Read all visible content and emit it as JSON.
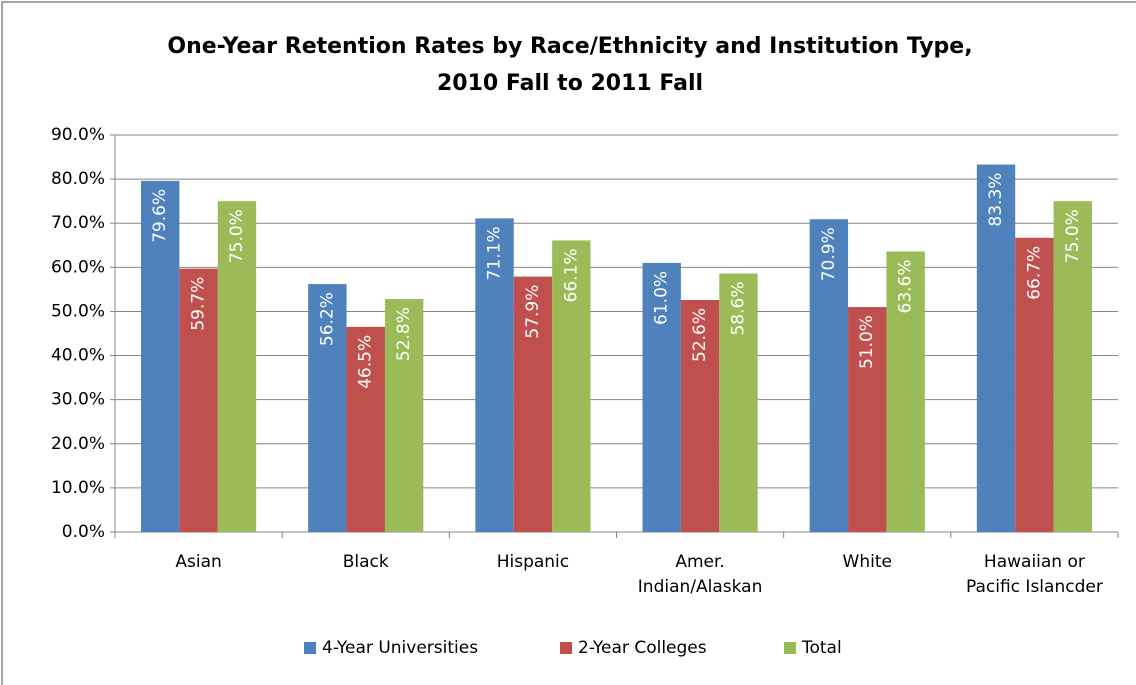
{
  "chart_data": {
    "type": "bar",
    "title": [
      "One-Year Retention Rates by Race/Ethnicity and Institution Type,",
      "2010 Fall to 2011 Fall"
    ],
    "categories": [
      [
        "Asian"
      ],
      [
        "Black"
      ],
      [
        "Hispanic"
      ],
      [
        "Amer.",
        "Indian/Alaskan"
      ],
      [
        "White"
      ],
      [
        "Hawaiian or",
        "Pacific Islancder"
      ]
    ],
    "series": [
      {
        "name": "4-Year Universities",
        "color": "#4f81bd",
        "values": [
          79.6,
          56.2,
          71.1,
          61.0,
          70.9,
          83.3
        ],
        "value_labels": [
          "79.6%",
          "56.2%",
          "71.1%",
          "61.0%",
          "70.9%",
          "83.3%"
        ]
      },
      {
        "name": "2-Year Colleges",
        "color": "#c0504d",
        "values": [
          59.7,
          46.5,
          57.9,
          52.6,
          51.0,
          66.7
        ],
        "value_labels": [
          "59.7%",
          "46.5%",
          "57.9%",
          "52.6%",
          "51.0%",
          "66.7%"
        ]
      },
      {
        "name": "Total",
        "color": "#9bbb59",
        "values": [
          75.0,
          52.8,
          66.1,
          58.6,
          63.6,
          75.0
        ],
        "value_labels": [
          "75.0%",
          "52.8%",
          "66.1%",
          "58.6%",
          "63.6%",
          "75.0%"
        ]
      }
    ],
    "ylim": [
      0,
      90
    ],
    "yticks": [
      {
        "value": 0,
        "label": "0.0%"
      },
      {
        "value": 10,
        "label": "10.0%"
      },
      {
        "value": 20,
        "label": "20.0%"
      },
      {
        "value": 30,
        "label": "30.0%"
      },
      {
        "value": 40,
        "label": "40.0%"
      },
      {
        "value": 50,
        "label": "50.0%"
      },
      {
        "value": 60,
        "label": "60.0%"
      },
      {
        "value": 70,
        "label": "70.0%"
      },
      {
        "value": 80,
        "label": "80.0%"
      },
      {
        "value": 90,
        "label": "90.0%"
      }
    ],
    "grid": true,
    "legend": "bottom"
  }
}
